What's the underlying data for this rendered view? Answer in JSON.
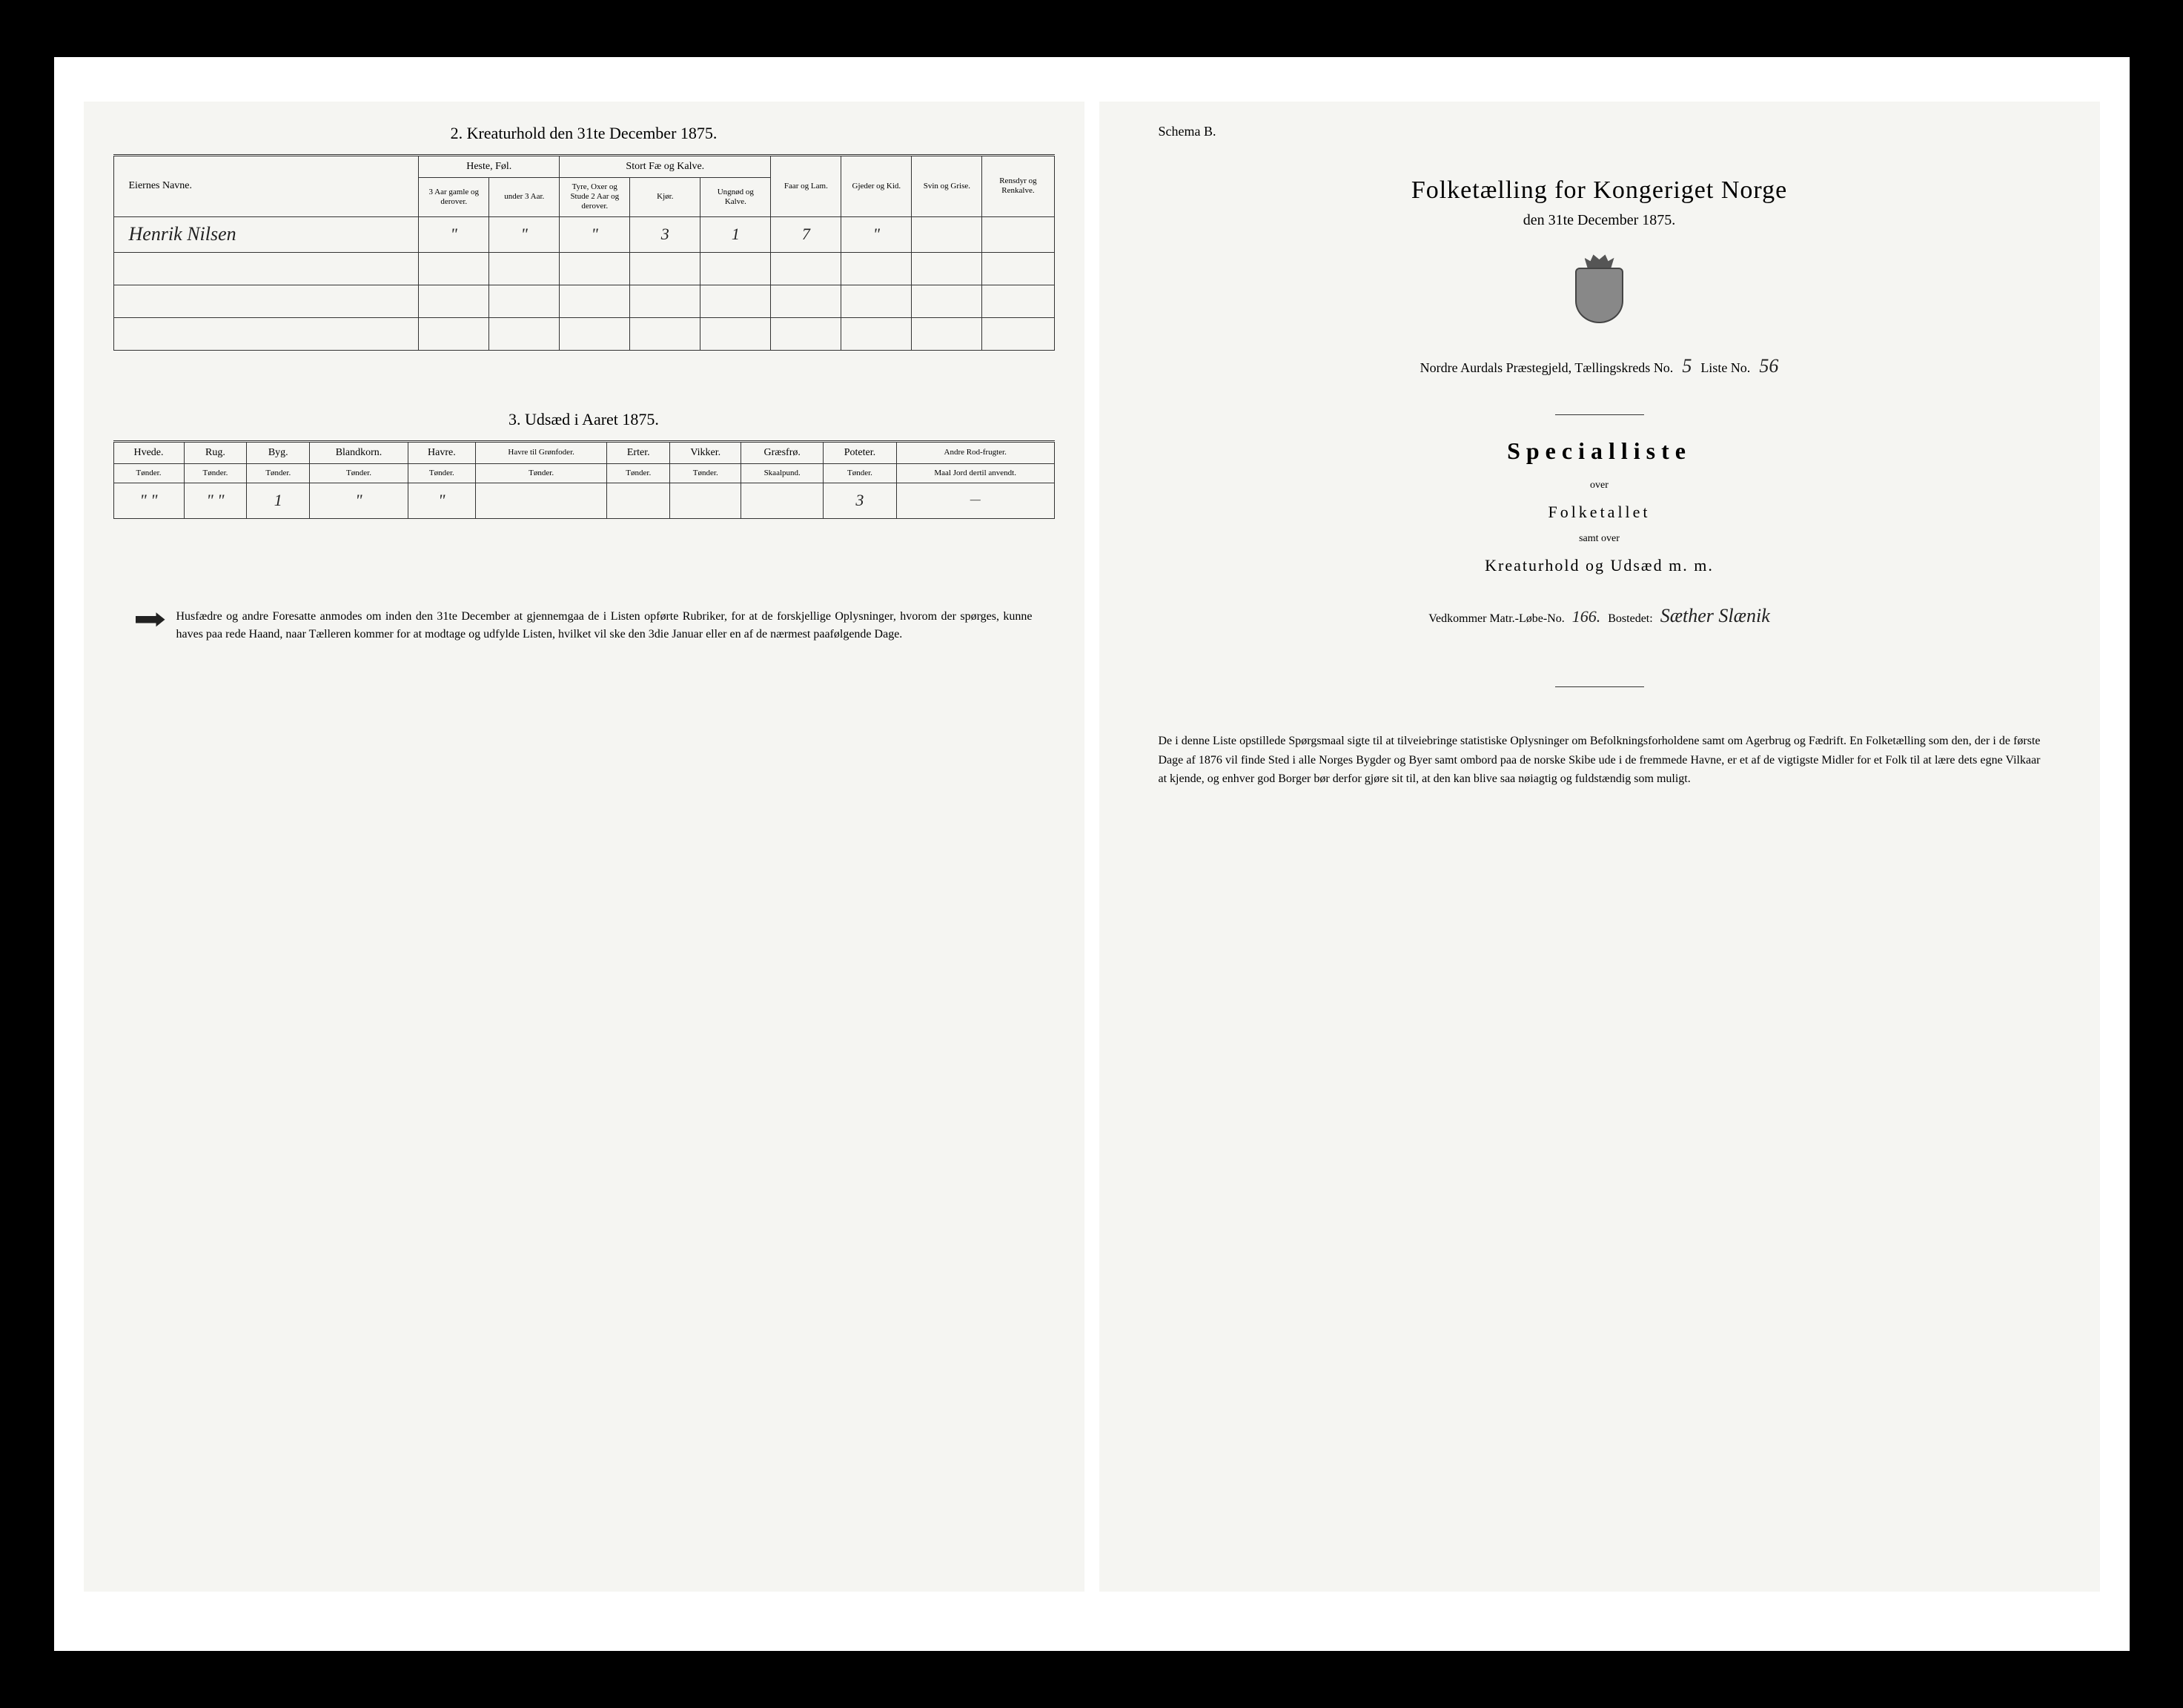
{
  "left": {
    "table1": {
      "title": "2. Kreaturhold den 31te December 1875.",
      "headers": {
        "name": "Eiernes Navne.",
        "horses": "Heste, Føl.",
        "horses_sub1": "3 Aar gamle og derover.",
        "horses_sub2": "under 3 Aar.",
        "cattle": "Stort Fæ og Kalve.",
        "cattle_sub1": "Tyre, Oxer og Stude 2 Aar og derover.",
        "cattle_sub2": "Kjør.",
        "cattle_sub3": "Ungnød og Kalve.",
        "sheep": "Faar og Lam.",
        "goats": "Gjeder og Kid.",
        "pigs": "Svin og Grise.",
        "reindeer": "Rensdyr og Renkalve."
      },
      "row": {
        "name": "Henrik Nilsen",
        "h1": "\"",
        "h2": "\"",
        "c1": "\"",
        "c2": "3",
        "c3": "1",
        "sheep": "7",
        "goats": "\"",
        "pigs": "",
        "reindeer": ""
      }
    },
    "table2": {
      "title": "3. Udsæd i Aaret 1875.",
      "headers": {
        "wheat": "Hvede.",
        "rye": "Rug.",
        "barley": "Byg.",
        "mixed": "Blandkorn.",
        "oats": "Havre.",
        "oats_green": "Havre til Grønfoder.",
        "peas": "Erter.",
        "vetch": "Vikker.",
        "grass": "Græsfrø.",
        "potatoes": "Poteter.",
        "roots": "Andre Rod-frugter.",
        "unit_tonder": "Tønder.",
        "unit_skaal": "Skaalpund.",
        "unit_jord": "Maal Jord dertil anvendt."
      },
      "row": {
        "wheat": "\" \"",
        "rye": "\" \"",
        "barley": "1",
        "mixed": "\"",
        "oats": "\"",
        "oats_green": "",
        "peas": "",
        "vetch": "",
        "grass": "",
        "potatoes": "3",
        "roots": "—"
      }
    },
    "instructions": "Husfædre og andre Foresatte anmodes om inden den 31te December at gjennemgaa de i Listen opførte Rubriker, for at de forskjellige Oplysninger, hvorom der spørges, kunne haves paa rede Haand, naar Tælleren kommer for at modtage og udfylde Listen, hvilket vil ske den 3die Januar eller en af de nærmest paafølgende Dage."
  },
  "right": {
    "schema": "Schema B.",
    "main_title": "Folketælling for Kongeriget Norge",
    "date_line": "den 31te December 1875.",
    "parish_prefix": "Nordre Aurdals Præstegjeld, Tællingskreds No.",
    "parish_no": "5",
    "liste_label": "Liste No.",
    "liste_no": "56",
    "specialliste": "Specialliste",
    "over": "over",
    "folketallet": "Folketallet",
    "samt_over": "samt over",
    "kreaturhold": "Kreaturhold og Udsæd m. m.",
    "matr_label": "Vedkommer Matr.-Løbe-No.",
    "matr_no": "166.",
    "bostedet_label": "Bostedet:",
    "bostedet": "Sæther Slænik",
    "bottom_para": "De i denne Liste opstillede Spørgsmaal sigte til at tilveiebringe statistiske Oplysninger om Befolkningsforholdene samt om Agerbrug og Fædrift. En Folketælling som den, der i de første Dage af 1876 vil finde Sted i alle Norges Bygder og Byer samt ombord paa de norske Skibe ude i de fremmede Havne, er et af de vigtigste Midler for et Folk til at lære dets egne Vilkaar at kjende, og enhver god Borger bør derfor gjøre sit til, at den kan blive saa nøiagtig og fuldstændig som muligt."
  }
}
